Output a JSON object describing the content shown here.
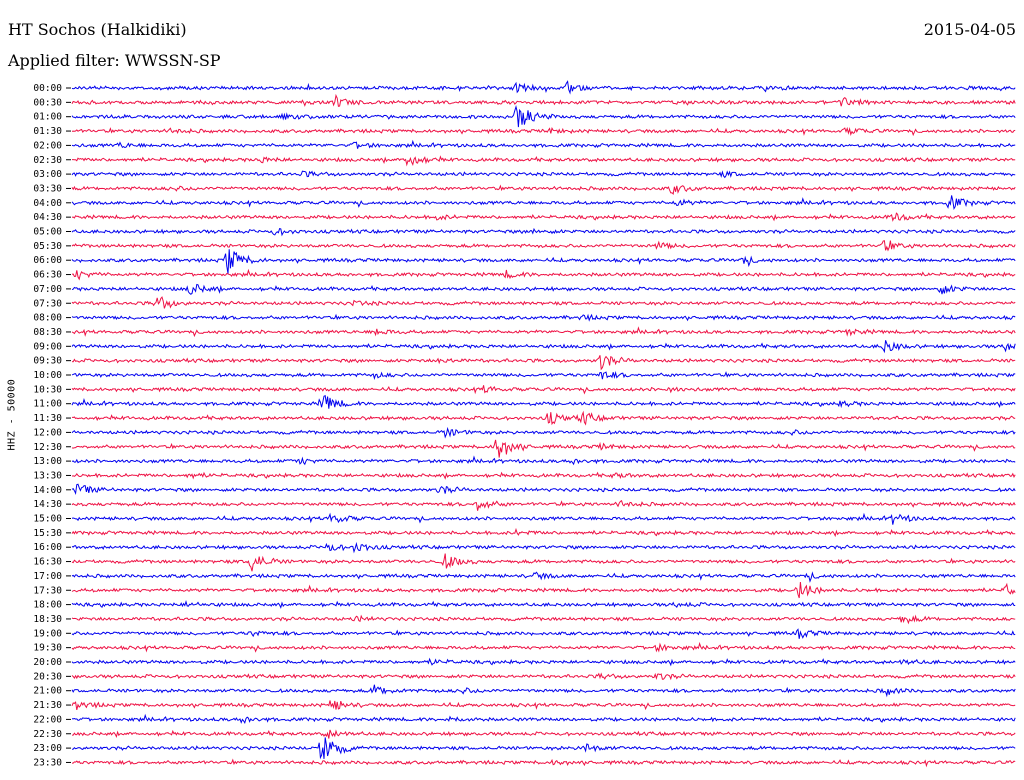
{
  "header": {
    "station": "HT Sochos (Halkidiki)",
    "date": "2015-04-05",
    "filter": "Applied filter: WWSSN-SP"
  },
  "chart_data": {
    "type": "line",
    "title": "HT Sochos (Halkidiki)",
    "ylabel": "HHZ - 50000",
    "xlabel": "",
    "grid": false,
    "colors": [
      "#0000ee",
      "#ee1144"
    ],
    "rows": [
      {
        "time": "00:00",
        "events": [
          {
            "pos": 0.47,
            "amp": 4
          },
          {
            "pos": 0.525,
            "amp": 5
          },
          {
            "pos": 0.735,
            "amp": 2
          }
        ]
      },
      {
        "time": "00:30",
        "events": [
          {
            "pos": 0.28,
            "amp": 4
          },
          {
            "pos": 0.815,
            "amp": 5
          },
          {
            "pos": 0.245,
            "amp": 2
          }
        ]
      },
      {
        "time": "01:00",
        "events": [
          {
            "pos": 0.47,
            "amp": 16
          },
          {
            "pos": 0.225,
            "amp": 2
          }
        ]
      },
      {
        "time": "01:30",
        "events": [
          {
            "pos": 0.105,
            "amp": 2
          },
          {
            "pos": 0.82,
            "amp": 3
          },
          {
            "pos": 0.505,
            "amp": 2
          }
        ]
      },
      {
        "time": "02:00",
        "events": [
          {
            "pos": 0.3,
            "amp": 3
          },
          {
            "pos": 0.05,
            "amp": 2
          }
        ]
      },
      {
        "time": "02:30",
        "events": [
          {
            "pos": 0.355,
            "amp": 8
          },
          {
            "pos": 0.2,
            "amp": 2
          }
        ]
      },
      {
        "time": "03:00",
        "events": [
          {
            "pos": 0.245,
            "amp": 2
          },
          {
            "pos": 0.69,
            "amp": 2
          }
        ]
      },
      {
        "time": "03:30",
        "events": [
          {
            "pos": 0.635,
            "amp": 5
          },
          {
            "pos": 0.105,
            "amp": 2
          }
        ]
      },
      {
        "time": "04:00",
        "events": [
          {
            "pos": 0.93,
            "amp": 7
          },
          {
            "pos": 0.64,
            "amp": 3
          }
        ]
      },
      {
        "time": "04:30",
        "events": [
          {
            "pos": 0.87,
            "amp": 4
          },
          {
            "pos": 0.385,
            "amp": 2
          }
        ]
      },
      {
        "time": "05:00",
        "events": [
          {
            "pos": 0.215,
            "amp": 3
          },
          {
            "pos": 0.49,
            "amp": 2
          }
        ]
      },
      {
        "time": "05:30",
        "events": [
          {
            "pos": 0.86,
            "amp": 5
          },
          {
            "pos": 0.62,
            "amp": 3
          }
        ]
      },
      {
        "time": "06:00",
        "events": [
          {
            "pos": 0.165,
            "amp": 14
          },
          {
            "pos": 0.71,
            "amp": 3
          }
        ]
      },
      {
        "time": "06:30",
        "events": [
          {
            "pos": 0.005,
            "amp": 4
          },
          {
            "pos": 0.46,
            "amp": 3
          }
        ]
      },
      {
        "time": "07:00",
        "events": [
          {
            "pos": 0.125,
            "amp": 6
          },
          {
            "pos": 0.92,
            "amp": 5
          }
        ]
      },
      {
        "time": "07:30",
        "events": [
          {
            "pos": 0.09,
            "amp": 8
          },
          {
            "pos": 0.3,
            "amp": 2
          }
        ]
      },
      {
        "time": "08:00",
        "events": [
          {
            "pos": 0.54,
            "amp": 2
          }
        ]
      },
      {
        "time": "08:30",
        "events": [
          {
            "pos": 0.32,
            "amp": 3
          },
          {
            "pos": 0.82,
            "amp": 3
          }
        ]
      },
      {
        "time": "09:00",
        "events": [
          {
            "pos": 0.86,
            "amp": 6
          },
          {
            "pos": 0.99,
            "amp": 6
          }
        ]
      },
      {
        "time": "09:30",
        "events": [
          {
            "pos": 0.56,
            "amp": 8
          },
          {
            "pos": 0.39,
            "amp": 2
          }
        ]
      },
      {
        "time": "10:00",
        "events": [
          {
            "pos": 0.56,
            "amp": 4
          },
          {
            "pos": 0.32,
            "amp": 2
          }
        ]
      },
      {
        "time": "10:30",
        "events": [
          {
            "pos": 0.435,
            "amp": 3
          },
          {
            "pos": 0.63,
            "amp": 2
          }
        ]
      },
      {
        "time": "11:00",
        "events": [
          {
            "pos": 0.265,
            "amp": 10
          },
          {
            "pos": 0.815,
            "amp": 2
          }
        ]
      },
      {
        "time": "11:30",
        "events": [
          {
            "pos": 0.505,
            "amp": 6
          },
          {
            "pos": 0.54,
            "amp": 6
          }
        ]
      },
      {
        "time": "12:00",
        "events": [
          {
            "pos": 0.395,
            "amp": 4
          },
          {
            "pos": 0.76,
            "amp": 2
          }
        ]
      },
      {
        "time": "12:30",
        "events": [
          {
            "pos": 0.45,
            "amp": 14
          },
          {
            "pos": 0.56,
            "amp": 2
          }
        ]
      },
      {
        "time": "13:00",
        "events": [
          {
            "pos": 0.24,
            "amp": 3
          },
          {
            "pos": 0.53,
            "amp": 2
          }
        ]
      },
      {
        "time": "13:30",
        "events": [
          {
            "pos": 0.125,
            "amp": 2
          },
          {
            "pos": 0.575,
            "amp": 2
          }
        ]
      },
      {
        "time": "14:00",
        "events": [
          {
            "pos": 0.005,
            "amp": 6
          },
          {
            "pos": 0.39,
            "amp": 4
          }
        ]
      },
      {
        "time": "14:30",
        "events": [
          {
            "pos": 0.43,
            "amp": 6
          },
          {
            "pos": 0.58,
            "amp": 3
          }
        ]
      },
      {
        "time": "15:00",
        "events": [
          {
            "pos": 0.275,
            "amp": 5
          },
          {
            "pos": 0.87,
            "amp": 5
          }
        ]
      },
      {
        "time": "15:30",
        "events": [
          {
            "pos": 0.47,
            "amp": 2
          }
        ]
      },
      {
        "time": "16:00",
        "events": [
          {
            "pos": 0.27,
            "amp": 4
          },
          {
            "pos": 0.3,
            "amp": 5
          }
        ]
      },
      {
        "time": "16:30",
        "events": [
          {
            "pos": 0.19,
            "amp": 10
          },
          {
            "pos": 0.395,
            "amp": 7
          }
        ]
      },
      {
        "time": "17:00",
        "events": [
          {
            "pos": 0.49,
            "amp": 3
          },
          {
            "pos": 0.78,
            "amp": 2
          }
        ]
      },
      {
        "time": "17:30",
        "events": [
          {
            "pos": 0.77,
            "amp": 9
          },
          {
            "pos": 0.99,
            "amp": 5
          }
        ]
      },
      {
        "time": "18:00",
        "events": [
          {
            "pos": 0.12,
            "amp": 2
          },
          {
            "pos": 0.64,
            "amp": 2
          }
        ]
      },
      {
        "time": "18:30",
        "events": [
          {
            "pos": 0.88,
            "amp": 4
          },
          {
            "pos": 0.3,
            "amp": 2
          }
        ]
      },
      {
        "time": "19:00",
        "events": [
          {
            "pos": 0.77,
            "amp": 4
          },
          {
            "pos": 0.19,
            "amp": 2
          }
        ]
      },
      {
        "time": "19:30",
        "events": [
          {
            "pos": 0.62,
            "amp": 3
          }
        ]
      },
      {
        "time": "20:00",
        "events": [
          {
            "pos": 0.38,
            "amp": 2
          },
          {
            "pos": 0.88,
            "amp": 2
          }
        ]
      },
      {
        "time": "20:30",
        "events": [
          {
            "pos": 0.62,
            "amp": 3
          },
          {
            "pos": 0.56,
            "amp": 2
          }
        ]
      },
      {
        "time": "21:00",
        "events": [
          {
            "pos": 0.32,
            "amp": 5
          },
          {
            "pos": 0.86,
            "amp": 4
          },
          {
            "pos": 0.41,
            "amp": 3
          }
        ]
      },
      {
        "time": "21:30",
        "events": [
          {
            "pos": 0.275,
            "amp": 6
          },
          {
            "pos": 0.005,
            "amp": 4
          }
        ]
      },
      {
        "time": "22:00",
        "events": [
          {
            "pos": 0.18,
            "amp": 3
          },
          {
            "pos": 0.4,
            "amp": 2
          }
        ]
      },
      {
        "time": "22:30",
        "events": [
          {
            "pos": 0.27,
            "amp": 4
          }
        ]
      },
      {
        "time": "23:00",
        "events": [
          {
            "pos": 0.265,
            "amp": 18
          },
          {
            "pos": 0.54,
            "amp": 5
          }
        ]
      },
      {
        "time": "23:30",
        "events": [
          {
            "pos": 0.51,
            "amp": 2
          }
        ]
      }
    ]
  }
}
